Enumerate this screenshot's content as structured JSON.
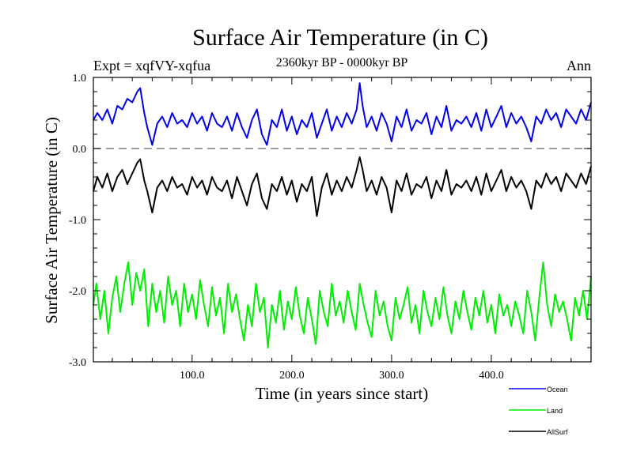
{
  "chart_data": {
    "type": "line",
    "title": "Surface Air Temperature (in C)",
    "subtitle": "2360kyr BP - 0000kyr BP",
    "expt_label": "Expt = xqfVY-xqfua",
    "season_label": "Ann",
    "xlabel": "Time (in years since start)",
    "ylabel": "Surface Air Temperature (in C)",
    "xlim": [
      1,
      500
    ],
    "ylim": [
      -3.0,
      1.0
    ],
    "x_ticks": [
      100,
      200,
      300,
      400
    ],
    "x_tick_labels": [
      "100.0",
      "200.0",
      "300.0",
      "400.0"
    ],
    "y_ticks": [
      1.0,
      0.0,
      -1.0,
      -2.0,
      -3.0
    ],
    "y_tick_labels": [
      "1.0",
      "0.0",
      "-1.0",
      "-2.0",
      "-3.0"
    ],
    "reference_line": {
      "y": 0.0,
      "style": "dashed",
      "color": "#808080"
    },
    "legend_position": "bottom-right",
    "series": [
      {
        "name": "Ocean",
        "color": "#0000ee",
        "x": [
          1,
          5,
          10,
          15,
          20,
          25,
          30,
          35,
          40,
          45,
          48,
          52,
          55,
          60,
          65,
          70,
          75,
          80,
          85,
          90,
          95,
          100,
          105,
          110,
          115,
          120,
          125,
          130,
          135,
          140,
          145,
          150,
          155,
          160,
          165,
          170,
          175,
          180,
          185,
          190,
          195,
          200,
          205,
          210,
          215,
          220,
          225,
          230,
          235,
          240,
          245,
          250,
          255,
          260,
          265,
          268,
          271,
          275,
          280,
          285,
          290,
          295,
          300,
          305,
          310,
          315,
          320,
          325,
          330,
          335,
          340,
          345,
          350,
          355,
          360,
          365,
          370,
          375,
          380,
          385,
          390,
          395,
          400,
          405,
          410,
          415,
          420,
          425,
          430,
          435,
          440,
          445,
          450,
          455,
          460,
          465,
          470,
          475,
          480,
          485,
          490,
          495,
          500
        ],
        "values": [
          0.4,
          0.5,
          0.4,
          0.55,
          0.35,
          0.6,
          0.55,
          0.7,
          0.65,
          0.8,
          0.85,
          0.5,
          0.3,
          0.05,
          0.35,
          0.45,
          0.3,
          0.5,
          0.35,
          0.4,
          0.3,
          0.5,
          0.35,
          0.45,
          0.25,
          0.5,
          0.35,
          0.3,
          0.45,
          0.25,
          0.5,
          0.3,
          0.15,
          0.4,
          0.55,
          0.2,
          0.05,
          0.4,
          0.3,
          0.55,
          0.25,
          0.45,
          0.2,
          0.4,
          0.3,
          0.5,
          0.15,
          0.35,
          0.55,
          0.25,
          0.45,
          0.3,
          0.5,
          0.35,
          0.55,
          0.92,
          0.6,
          0.3,
          0.45,
          0.25,
          0.5,
          0.35,
          0.1,
          0.45,
          0.3,
          0.55,
          0.25,
          0.4,
          0.35,
          0.5,
          0.2,
          0.45,
          0.3,
          0.6,
          0.25,
          0.4,
          0.35,
          0.45,
          0.3,
          0.5,
          0.25,
          0.55,
          0.3,
          0.45,
          0.6,
          0.3,
          0.5,
          0.35,
          0.45,
          0.3,
          0.1,
          0.45,
          0.35,
          0.55,
          0.4,
          0.5,
          0.3,
          0.55,
          0.45,
          0.35,
          0.55,
          0.4,
          0.65
        ]
      },
      {
        "name": "Land",
        "color": "#00ee00",
        "x": [
          1,
          4,
          8,
          12,
          16,
          20,
          24,
          28,
          32,
          36,
          40,
          44,
          48,
          52,
          56,
          60,
          64,
          68,
          72,
          76,
          80,
          84,
          88,
          92,
          96,
          100,
          104,
          108,
          112,
          116,
          120,
          124,
          128,
          132,
          136,
          140,
          144,
          148,
          152,
          156,
          160,
          164,
          168,
          172,
          176,
          180,
          184,
          188,
          192,
          196,
          200,
          204,
          208,
          212,
          216,
          220,
          224,
          228,
          232,
          236,
          240,
          244,
          248,
          252,
          256,
          260,
          264,
          268,
          272,
          276,
          280,
          284,
          288,
          292,
          296,
          300,
          304,
          308,
          312,
          316,
          320,
          324,
          328,
          332,
          336,
          340,
          344,
          348,
          352,
          356,
          360,
          364,
          368,
          372,
          376,
          380,
          384,
          388,
          392,
          396,
          400,
          404,
          408,
          412,
          416,
          420,
          424,
          428,
          432,
          436,
          440,
          444,
          448,
          452,
          456,
          460,
          464,
          468,
          472,
          476,
          480,
          484,
          488,
          492,
          496,
          500
        ],
        "values": [
          -2.2,
          -1.9,
          -2.4,
          -2.0,
          -2.6,
          -2.1,
          -1.8,
          -2.3,
          -1.9,
          -1.6,
          -2.2,
          -1.75,
          -2.0,
          -1.7,
          -2.5,
          -1.9,
          -2.3,
          -2.0,
          -2.45,
          -1.8,
          -2.2,
          -2.0,
          -2.5,
          -1.9,
          -2.3,
          -2.05,
          -2.4,
          -1.85,
          -2.2,
          -2.5,
          -1.95,
          -2.35,
          -2.1,
          -2.6,
          -1.9,
          -2.3,
          -2.05,
          -2.4,
          -2.7,
          -2.2,
          -2.5,
          -1.9,
          -2.3,
          -2.1,
          -2.8,
          -2.2,
          -2.45,
          -2.0,
          -2.55,
          -2.15,
          -2.4,
          -1.95,
          -2.35,
          -2.6,
          -2.1,
          -2.4,
          -2.75,
          -2.0,
          -2.3,
          -2.5,
          -1.9,
          -2.35,
          -2.15,
          -2.45,
          -2.0,
          -2.3,
          -2.55,
          -1.9,
          -2.2,
          -2.45,
          -2.65,
          -2.0,
          -2.35,
          -2.15,
          -2.5,
          -2.7,
          -2.1,
          -2.4,
          -2.2,
          -1.95,
          -2.45,
          -2.2,
          -2.6,
          -2.0,
          -2.3,
          -2.5,
          -2.1,
          -2.4,
          -1.95,
          -2.35,
          -2.6,
          -2.15,
          -2.4,
          -2.0,
          -2.3,
          -2.55,
          -2.1,
          -2.35,
          -2.0,
          -2.45,
          -2.2,
          -2.6,
          -2.05,
          -2.35,
          -2.2,
          -2.5,
          -2.15,
          -2.35,
          -2.6,
          -2.0,
          -2.3,
          -2.7,
          -2.1,
          -1.6,
          -2.2,
          -2.5,
          -2.05,
          -2.3,
          -2.15,
          -2.4,
          -2.7,
          -2.1,
          -2.35,
          -2.0,
          -2.4,
          -1.8
        ]
      },
      {
        "name": "AllSurf",
        "color": "#000000",
        "x": [
          1,
          5,
          10,
          15,
          20,
          25,
          30,
          35,
          40,
          45,
          48,
          52,
          55,
          60,
          65,
          70,
          75,
          80,
          85,
          90,
          95,
          100,
          105,
          110,
          115,
          120,
          125,
          130,
          135,
          140,
          145,
          150,
          155,
          160,
          165,
          170,
          175,
          180,
          185,
          190,
          195,
          200,
          205,
          210,
          215,
          220,
          225,
          230,
          235,
          240,
          245,
          250,
          255,
          260,
          265,
          268,
          271,
          275,
          280,
          285,
          290,
          295,
          300,
          305,
          310,
          315,
          320,
          325,
          330,
          335,
          340,
          345,
          350,
          355,
          360,
          365,
          370,
          375,
          380,
          385,
          390,
          395,
          400,
          405,
          410,
          415,
          420,
          425,
          430,
          435,
          440,
          445,
          450,
          455,
          460,
          465,
          470,
          475,
          480,
          485,
          490,
          495,
          500
        ],
        "values": [
          -0.6,
          -0.4,
          -0.55,
          -0.35,
          -0.6,
          -0.4,
          -0.3,
          -0.5,
          -0.35,
          -0.2,
          -0.15,
          -0.45,
          -0.6,
          -0.9,
          -0.55,
          -0.45,
          -0.6,
          -0.4,
          -0.55,
          -0.5,
          -0.65,
          -0.4,
          -0.55,
          -0.45,
          -0.65,
          -0.4,
          -0.55,
          -0.6,
          -0.45,
          -0.7,
          -0.4,
          -0.6,
          -0.8,
          -0.5,
          -0.35,
          -0.7,
          -0.85,
          -0.5,
          -0.6,
          -0.4,
          -0.65,
          -0.45,
          -0.75,
          -0.5,
          -0.6,
          -0.4,
          -0.95,
          -0.55,
          -0.35,
          -0.65,
          -0.45,
          -0.6,
          -0.4,
          -0.55,
          -0.3,
          -0.12,
          -0.3,
          -0.6,
          -0.45,
          -0.65,
          -0.4,
          -0.55,
          -0.9,
          -0.45,
          -0.6,
          -0.35,
          -0.65,
          -0.5,
          -0.55,
          -0.4,
          -0.7,
          -0.45,
          -0.6,
          -0.3,
          -0.65,
          -0.5,
          -0.55,
          -0.45,
          -0.6,
          -0.4,
          -0.65,
          -0.35,
          -0.6,
          -0.45,
          -0.3,
          -0.6,
          -0.4,
          -0.55,
          -0.45,
          -0.6,
          -0.85,
          -0.45,
          -0.55,
          -0.35,
          -0.5,
          -0.4,
          -0.6,
          -0.35,
          -0.45,
          -0.55,
          -0.35,
          -0.5,
          -0.25
        ]
      }
    ]
  }
}
